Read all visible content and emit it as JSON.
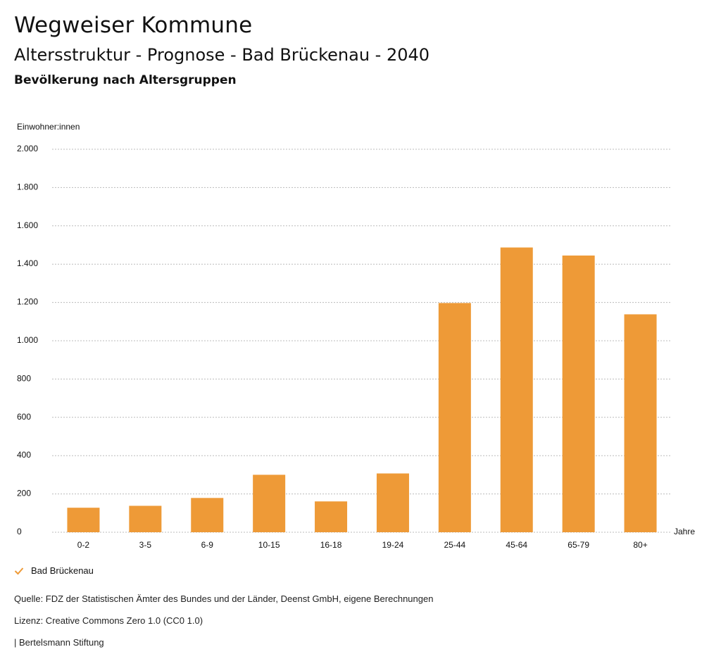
{
  "header": {
    "title": "Wegweiser Kommune",
    "subtitle": "Altersstruktur - Prognose - Bad Brückenau - 2040",
    "chart_heading": "Bevölkerung nach Altersgruppen"
  },
  "chart_data": {
    "type": "bar",
    "ylabel": "Einwohner:innen",
    "xlabel": "Jahre",
    "ylim": [
      0,
      2000
    ],
    "yticks": [
      0,
      200,
      400,
      600,
      800,
      1000,
      1200,
      1400,
      1600,
      1800,
      2000
    ],
    "ytick_labels": [
      "0",
      "200",
      "400",
      "600",
      "800",
      "1.000",
      "1.200",
      "1.400",
      "1.600",
      "1.800",
      "2.000"
    ],
    "grid": true,
    "categories": [
      "0-2",
      "3-5",
      "6-9",
      "10-15",
      "16-18",
      "19-24",
      "25-44",
      "45-64",
      "65-79",
      "80+"
    ],
    "series": [
      {
        "name": "Bad Brückenau",
        "color": "#ee9a37",
        "values": [
          128,
          138,
          179,
          300,
          161,
          307,
          1197,
          1487,
          1445,
          1138
        ]
      }
    ]
  },
  "legend": {
    "label": "Bad Brückenau",
    "color": "#ee9a37"
  },
  "footer": {
    "source": "Quelle: FDZ der Statistischen Ämter des Bundes und der Länder, Deenst GmbH, eigene Berechnungen",
    "license": "Lizenz: Creative Commons Zero 1.0 (CC0 1.0)",
    "brand": "| Bertelsmann Stiftung"
  }
}
